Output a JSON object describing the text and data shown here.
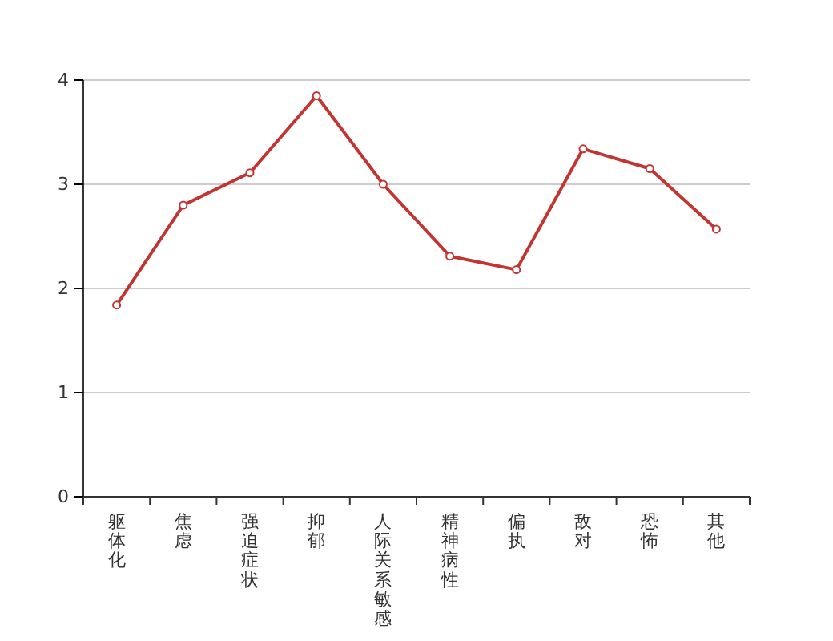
{
  "chart_data": {
    "type": "line",
    "categories": [
      "躯体化",
      "焦虑",
      "强迫症状",
      "抑郁",
      "人际关系敏感",
      "精神病性",
      "偏执",
      "敌对",
      "恐怖",
      "其他"
    ],
    "series": [
      {
        "color": "#c23531",
        "values": [
          1.84,
          2.8,
          3.11,
          3.85,
          3.0,
          2.31,
          2.18,
          3.34,
          3.15,
          2.57
        ]
      }
    ],
    "ylim": [
      0,
      4
    ],
    "yticks": [
      0,
      1,
      2,
      3,
      4
    ],
    "grid": "y",
    "marker": "circle",
    "line_style": "solid"
  }
}
